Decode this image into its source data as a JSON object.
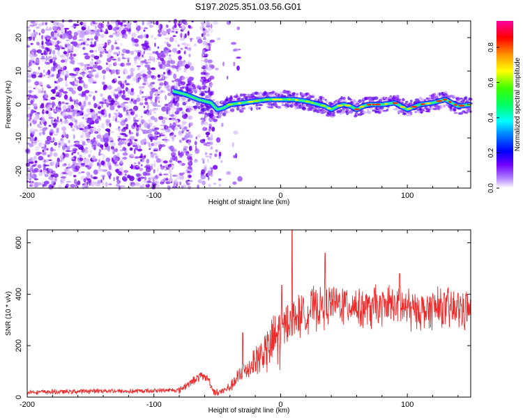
{
  "title": "S197.2025.351.03.56.G01",
  "chart_data": [
    {
      "type": "heatmap",
      "name": "spectrogram",
      "xlabel": "Height of straight line (km)",
      "ylabel": "Frequency (Hz)",
      "xlim": [
        -200,
        150
      ],
      "ylim": [
        -25,
        25
      ],
      "xticks": [
        -200,
        -100,
        0,
        100
      ],
      "xtick_labels": [
        "-200",
        "-100",
        "0",
        "100"
      ],
      "yticks": [
        -20,
        -10,
        0,
        10,
        20
      ],
      "ytick_labels": [
        "-20",
        "-10",
        "0",
        "10",
        "20"
      ],
      "colorbar": {
        "label": "Normalized spectral amplitude",
        "range": [
          0,
          0.95
        ],
        "ticks": [
          0.0,
          0.2,
          0.4,
          0.6,
          0.8
        ],
        "tick_labels": [
          "0.0",
          "0.2",
          "0.4",
          "0.6",
          "0.8"
        ],
        "colors": [
          "#ffffff",
          "#8000ff",
          "#0000ff",
          "#00ffff",
          "#00ff00",
          "#ffff00",
          "#ff8000",
          "#ff0000",
          "#ff00a0"
        ]
      },
      "signal_track": {
        "x": [
          -85,
          -75,
          -65,
          -55,
          -50,
          -45,
          -40,
          -30,
          -20,
          -10,
          0,
          10,
          20,
          30,
          35,
          40,
          45,
          50,
          55,
          60,
          65,
          70,
          80,
          90,
          95,
          100,
          110,
          120,
          130,
          140,
          150
        ],
        "freq": [
          4,
          3,
          1.5,
          0.5,
          -1.5,
          -1,
          0,
          0.5,
          1,
          1.5,
          1.5,
          1.5,
          1,
          0,
          -0.5,
          -1.5,
          -0.5,
          0,
          -0.5,
          -1.5,
          -0.5,
          0,
          0,
          0.5,
          -0.5,
          -1.5,
          0,
          0.5,
          1.5,
          -0.5,
          0
        ]
      },
      "noise_region_until_x": -80
    },
    {
      "type": "line",
      "name": "snr",
      "xlabel": "Height of straight line (km)",
      "ylabel": "SNR (10 * v/v)",
      "xlim": [
        -200,
        150
      ],
      "ylim": [
        0,
        650
      ],
      "xticks": [
        -200,
        -100,
        0,
        100
      ],
      "xtick_labels": [
        "-200",
        "-100",
        "0",
        "100"
      ],
      "yticks": [
        0,
        200,
        400,
        600
      ],
      "ytick_labels": [
        "0",
        "200",
        "400",
        "600"
      ],
      "color": "#ee2b2b",
      "series": [
        {
          "name": "SNR",
          "x": [
            -200,
            -180,
            -160,
            -140,
            -120,
            -100,
            -80,
            -70,
            -62,
            -57,
            -53,
            -50,
            -45,
            -40,
            -35,
            -30,
            -25,
            -20,
            -15,
            -10,
            -5,
            0,
            5,
            10,
            15,
            20,
            25,
            30,
            40,
            50,
            60,
            70,
            80,
            90,
            100,
            110,
            120,
            130,
            140,
            150
          ],
          "y": [
            20,
            20,
            22,
            25,
            22,
            25,
            28,
            60,
            85,
            70,
            25,
            15,
            25,
            40,
            65,
            95,
            115,
            140,
            165,
            190,
            220,
            260,
            290,
            310,
            320,
            330,
            345,
            350,
            360,
            365,
            355,
            345,
            350,
            360,
            345,
            335,
            345,
            340,
            345,
            340
          ]
        }
      ],
      "spikes": [
        {
          "x": 9,
          "y": 650
        },
        {
          "x": 35,
          "y": 560
        },
        {
          "x": 1,
          "y": 435
        },
        {
          "x": -30,
          "y": 250
        },
        {
          "x": 94,
          "y": 480
        }
      ]
    }
  ]
}
